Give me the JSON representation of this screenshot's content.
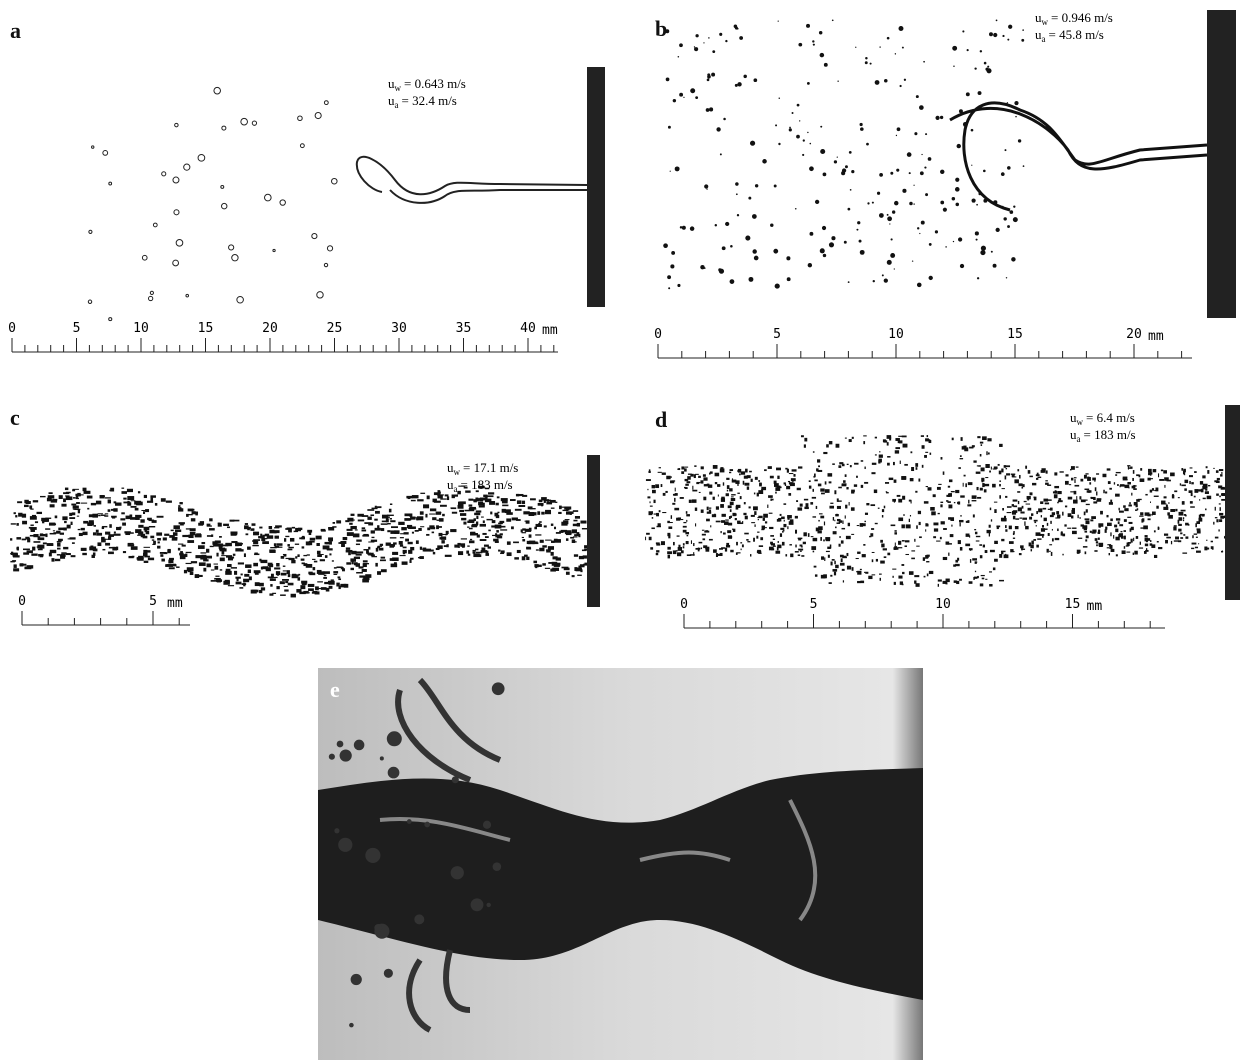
{
  "panels": [
    {
      "label": "a",
      "annotations": [
        {
          "symbol": "u",
          "sub": "w",
          "text": "= 0.643 m/s"
        },
        {
          "symbol": "u",
          "sub": "a",
          "text": "= 32.4    m/s"
        }
      ],
      "scale": {
        "ticks": [
          0,
          5,
          10,
          15,
          20,
          25,
          30,
          35,
          40
        ],
        "unit": "mm"
      }
    },
    {
      "label": "b",
      "annotations": [
        {
          "symbol": "u",
          "sub": "w",
          "text": "=  0.946 m/s"
        },
        {
          "symbol": "u",
          "sub": "a",
          "text": "= 45.8    m/s"
        }
      ],
      "scale": {
        "ticks": [
          0,
          5,
          10,
          15,
          20
        ],
        "unit": "mm"
      }
    },
    {
      "label": "c",
      "annotations": [
        {
          "symbol": "u",
          "sub": "w",
          "text": "=  17.1 m/s"
        },
        {
          "symbol": "u",
          "sub": "a",
          "text": "= 183    m/s"
        }
      ],
      "scale": {
        "ticks": [
          0,
          5
        ],
        "unit": "mm"
      }
    },
    {
      "label": "d",
      "annotations": [
        {
          "symbol": "u",
          "sub": "w",
          "text": "=    6.4 m/s"
        },
        {
          "symbol": "u",
          "sub": "a",
          "text": "= 183    m/s"
        }
      ],
      "scale": {
        "ticks": [
          0,
          5,
          10,
          15
        ],
        "unit": "mm"
      }
    },
    {
      "label": "e"
    }
  ]
}
